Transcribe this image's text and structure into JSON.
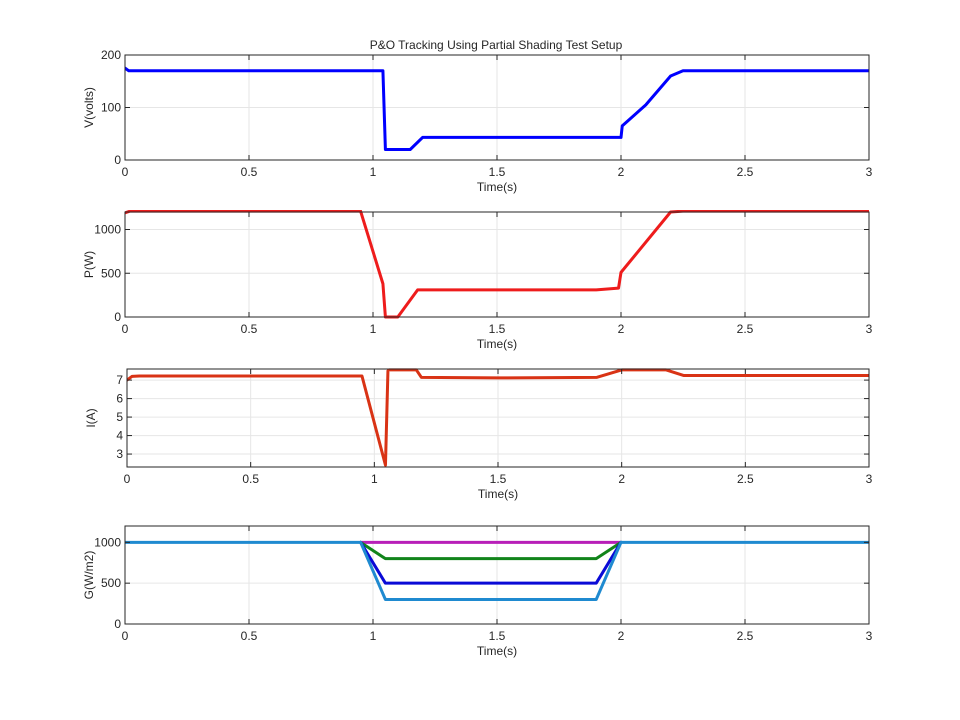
{
  "figure": {
    "title": "P&O Tracking Using  Partial Shading Test Setup"
  },
  "chart_data": [
    {
      "type": "line",
      "title": "P&O Tracking Using  Partial Shading Test Setup",
      "xlabel": "Time(s)",
      "ylabel": "V(volts)",
      "xlim": [
        0,
        3
      ],
      "ylim": [
        0,
        200
      ],
      "xticks": [
        0,
        0.5,
        1,
        1.5,
        2,
        2.5,
        3
      ],
      "xtick_labels": [
        "0",
        "0.5",
        "1",
        "1.5",
        "2",
        "2.5",
        "3"
      ],
      "yticks": [
        0,
        100,
        200
      ],
      "ytick_labels": [
        "0",
        "100",
        "200"
      ],
      "grid": true,
      "series": [
        {
          "color": "#0000ff",
          "x": [
            0,
            0.015,
            0.04,
            0.3,
            1.04,
            1.05,
            1.06,
            1.15,
            1.2,
            1.4,
            1.9,
            2.0,
            2.005,
            2.1,
            2.2,
            2.25,
            2.5,
            3.0
          ],
          "y": [
            175,
            170,
            170,
            170,
            170,
            20,
            20,
            20,
            43,
            43,
            43,
            43,
            65,
            105,
            160,
            170,
            170,
            170
          ]
        }
      ]
    },
    {
      "type": "line",
      "title": "",
      "xlabel": "Time(s)",
      "ylabel": "P(W)",
      "xlim": [
        0,
        3
      ],
      "ylim": [
        0,
        1200
      ],
      "xticks": [
        0,
        0.5,
        1,
        1.5,
        2,
        2.5,
        3
      ],
      "xtick_labels": [
        "0",
        "0.5",
        "1",
        "1.5",
        "2",
        "2.5",
        "3"
      ],
      "yticks": [
        0,
        500,
        1000
      ],
      "ytick_labels": [
        "0",
        "500",
        "1000"
      ],
      "grid": true,
      "series": [
        {
          "color": "#ee1c1c",
          "x": [
            0,
            0.02,
            0.95,
            1.04,
            1.05,
            1.1,
            1.18,
            1.9,
            1.99,
            2.0,
            2.2,
            2.25,
            3.0
          ],
          "y": [
            1190,
            1210,
            1210,
            380,
            0,
            0,
            310,
            310,
            330,
            510,
            1200,
            1210,
            1210
          ]
        }
      ]
    },
    {
      "type": "line",
      "title": "",
      "xlabel": "Time(s)",
      "ylabel": "I(A)",
      "xlim": [
        0,
        3
      ],
      "ylim": [
        2.3,
        7.6
      ],
      "xticks": [
        0,
        0.5,
        1,
        1.5,
        2,
        2.5,
        3
      ],
      "xtick_labels": [
        "0",
        "0.5",
        "1",
        "1.5",
        "2",
        "2.5",
        "3"
      ],
      "yticks": [
        3,
        4,
        5,
        6,
        7
      ],
      "ytick_labels": [
        "3",
        "4",
        "5",
        "6",
        "7"
      ],
      "grid": true,
      "series": [
        {
          "color": "#d93315",
          "x": [
            0,
            0.02,
            0.05,
            0.95,
            1.045,
            1.055,
            1.06,
            1.17,
            1.19,
            1.5,
            1.9,
            2.0,
            2.18,
            2.25,
            3.0
          ],
          "y": [
            7.0,
            7.2,
            7.22,
            7.22,
            2.4,
            7.5,
            7.55,
            7.55,
            7.15,
            7.12,
            7.15,
            7.55,
            7.55,
            7.25,
            7.25
          ]
        }
      ]
    },
    {
      "type": "line",
      "title": "",
      "xlabel": "Time(s)",
      "ylabel": "G(W/m2)",
      "xlim": [
        0,
        3
      ],
      "ylim": [
        0,
        1200
      ],
      "xticks": [
        0,
        0.5,
        1,
        1.5,
        2,
        2.5,
        3
      ],
      "xtick_labels": [
        "0",
        "0.5",
        "1",
        "1.5",
        "2",
        "2.5",
        "3"
      ],
      "yticks": [
        0,
        500,
        1000
      ],
      "ytick_labels": [
        "0",
        "500",
        "1000"
      ],
      "grid": true,
      "series": [
        {
          "color": "#b81fb8",
          "x": [
            0.95,
            2.0
          ],
          "y": [
            1000,
            1000
          ]
        },
        {
          "color": "#11841a",
          "x": [
            0.95,
            1.05,
            1.9,
            2.0
          ],
          "y": [
            1000,
            800,
            800,
            1000
          ]
        },
        {
          "color": "#0a0ad6",
          "x": [
            0.95,
            1.05,
            1.9,
            2.0
          ],
          "y": [
            1000,
            500,
            500,
            1000
          ]
        },
        {
          "color": "#1f8ad0",
          "x": [
            0,
            0.95,
            1.05,
            1.9,
            2.0,
            3.0
          ],
          "y": [
            1000,
            1000,
            300,
            300,
            1000,
            1000
          ]
        }
      ]
    }
  ]
}
